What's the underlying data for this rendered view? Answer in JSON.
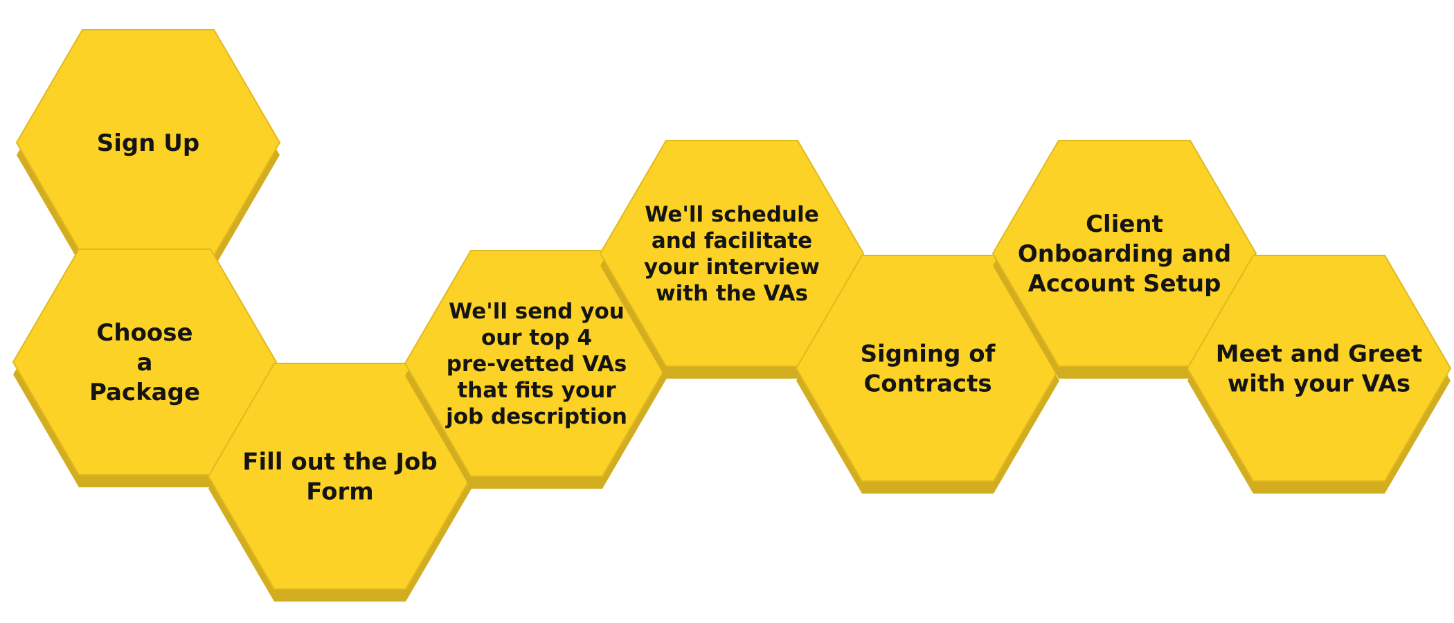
{
  "colors": {
    "hex_fill": "#fcd226",
    "hex_shadow": "#d3ad20",
    "text": "#141414",
    "background": "#ffffff"
  },
  "steps": [
    {
      "id": "sign-up",
      "lines": [
        "Sign Up"
      ]
    },
    {
      "id": "choose-package",
      "lines": [
        "Choose",
        "a",
        "Package"
      ]
    },
    {
      "id": "fill-out-job-form",
      "lines": [
        "Fill out the Job",
        "Form"
      ]
    },
    {
      "id": "send-top-4-vas",
      "lines": [
        "We'll send you",
        "our top 4",
        "pre-vetted VAs",
        "that fits your",
        "job description"
      ]
    },
    {
      "id": "schedule-interview",
      "lines": [
        "We'll schedule",
        "and facilitate",
        "your interview",
        "with the VAs"
      ]
    },
    {
      "id": "signing-of-contracts",
      "lines": [
        "Signing of",
        "Contracts"
      ]
    },
    {
      "id": "client-onboarding",
      "lines": [
        "Client",
        "Onboarding and",
        "Account Setup"
      ]
    },
    {
      "id": "meet-and-greet",
      "lines": [
        "Meet and Greet",
        "with your VAs"
      ]
    }
  ]
}
